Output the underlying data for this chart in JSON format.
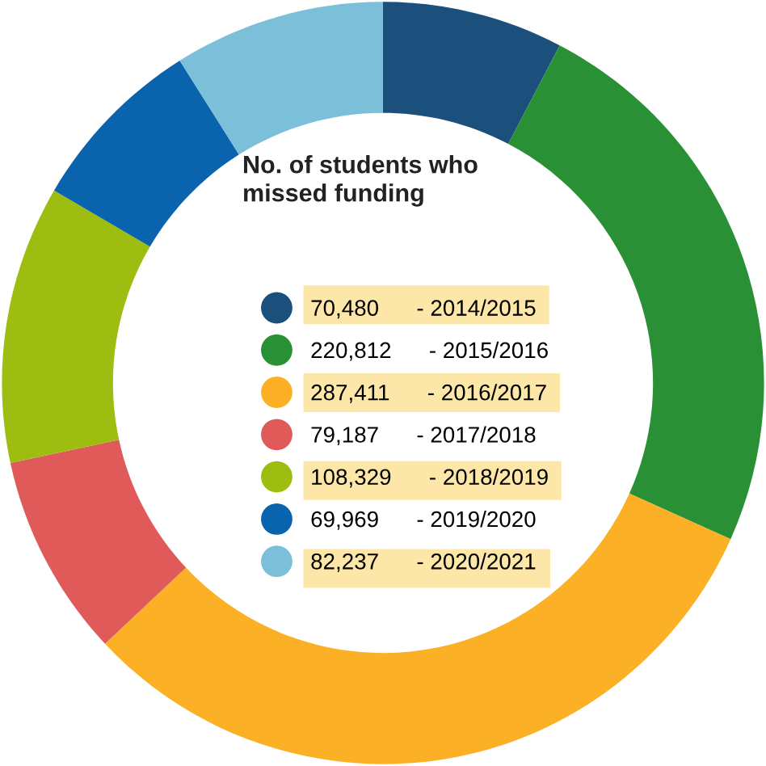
{
  "chart_data": {
    "type": "donut",
    "title": "No. of students who missed funding",
    "categories": [
      "- 2014/2015",
      "- 2015/2016",
      "- 2016/2017",
      "- 2017/2018",
      "- 2018/2019",
      "- 2019/2020",
      "- 2020/2021"
    ],
    "values": [
      70480,
      220812,
      287411,
      79187,
      108329,
      69969,
      82237
    ],
    "value_labels": [
      "70,480",
      "220,812",
      "287,411",
      "79,187",
      "108,329",
      "69,969",
      "82,237"
    ],
    "colors": [
      "#1b4f7c",
      "#2a9035",
      "#fbb026",
      "#e05a5a",
      "#9dbd10",
      "#0a64ad",
      "#7bbfd9"
    ],
    "legend": "center"
  }
}
